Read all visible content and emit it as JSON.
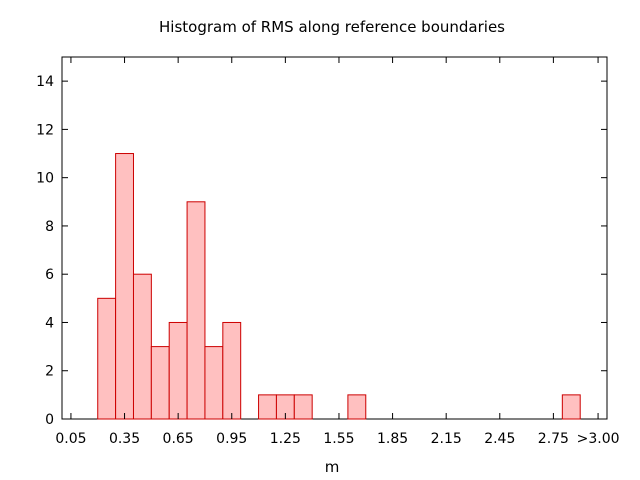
{
  "chart_data": {
    "type": "bar",
    "title": "Histogram of RMS along reference boundaries",
    "xlabel": "m",
    "ylabel": "",
    "ylim": [
      0,
      15
    ],
    "yticks": [
      0,
      2,
      4,
      6,
      8,
      10,
      12,
      14
    ],
    "xlim": [
      0.0,
      3.05
    ],
    "xticks": [
      "0.05",
      "0.35",
      "0.65",
      "0.95",
      "1.25",
      "1.55",
      "1.85",
      "2.15",
      "2.45",
      "2.75",
      ">3.00"
    ],
    "xtick_values": [
      0.05,
      0.35,
      0.65,
      0.95,
      1.25,
      1.55,
      1.85,
      2.15,
      2.45,
      2.75,
      3.0
    ],
    "bin_width": 0.1,
    "bars": [
      {
        "x": 0.25,
        "value": 5
      },
      {
        "x": 0.35,
        "value": 11
      },
      {
        "x": 0.45,
        "value": 6
      },
      {
        "x": 0.55,
        "value": 3
      },
      {
        "x": 0.65,
        "value": 4
      },
      {
        "x": 0.75,
        "value": 9
      },
      {
        "x": 0.85,
        "value": 3
      },
      {
        "x": 0.95,
        "value": 4
      },
      {
        "x": 1.15,
        "value": 1
      },
      {
        "x": 1.25,
        "value": 1
      },
      {
        "x": 1.35,
        "value": 1
      },
      {
        "x": 1.65,
        "value": 1
      },
      {
        "x": 2.85,
        "value": 1
      }
    ],
    "grid": false,
    "colors": {
      "fill": "#ffc0c0",
      "stroke": "#cc0000"
    }
  }
}
